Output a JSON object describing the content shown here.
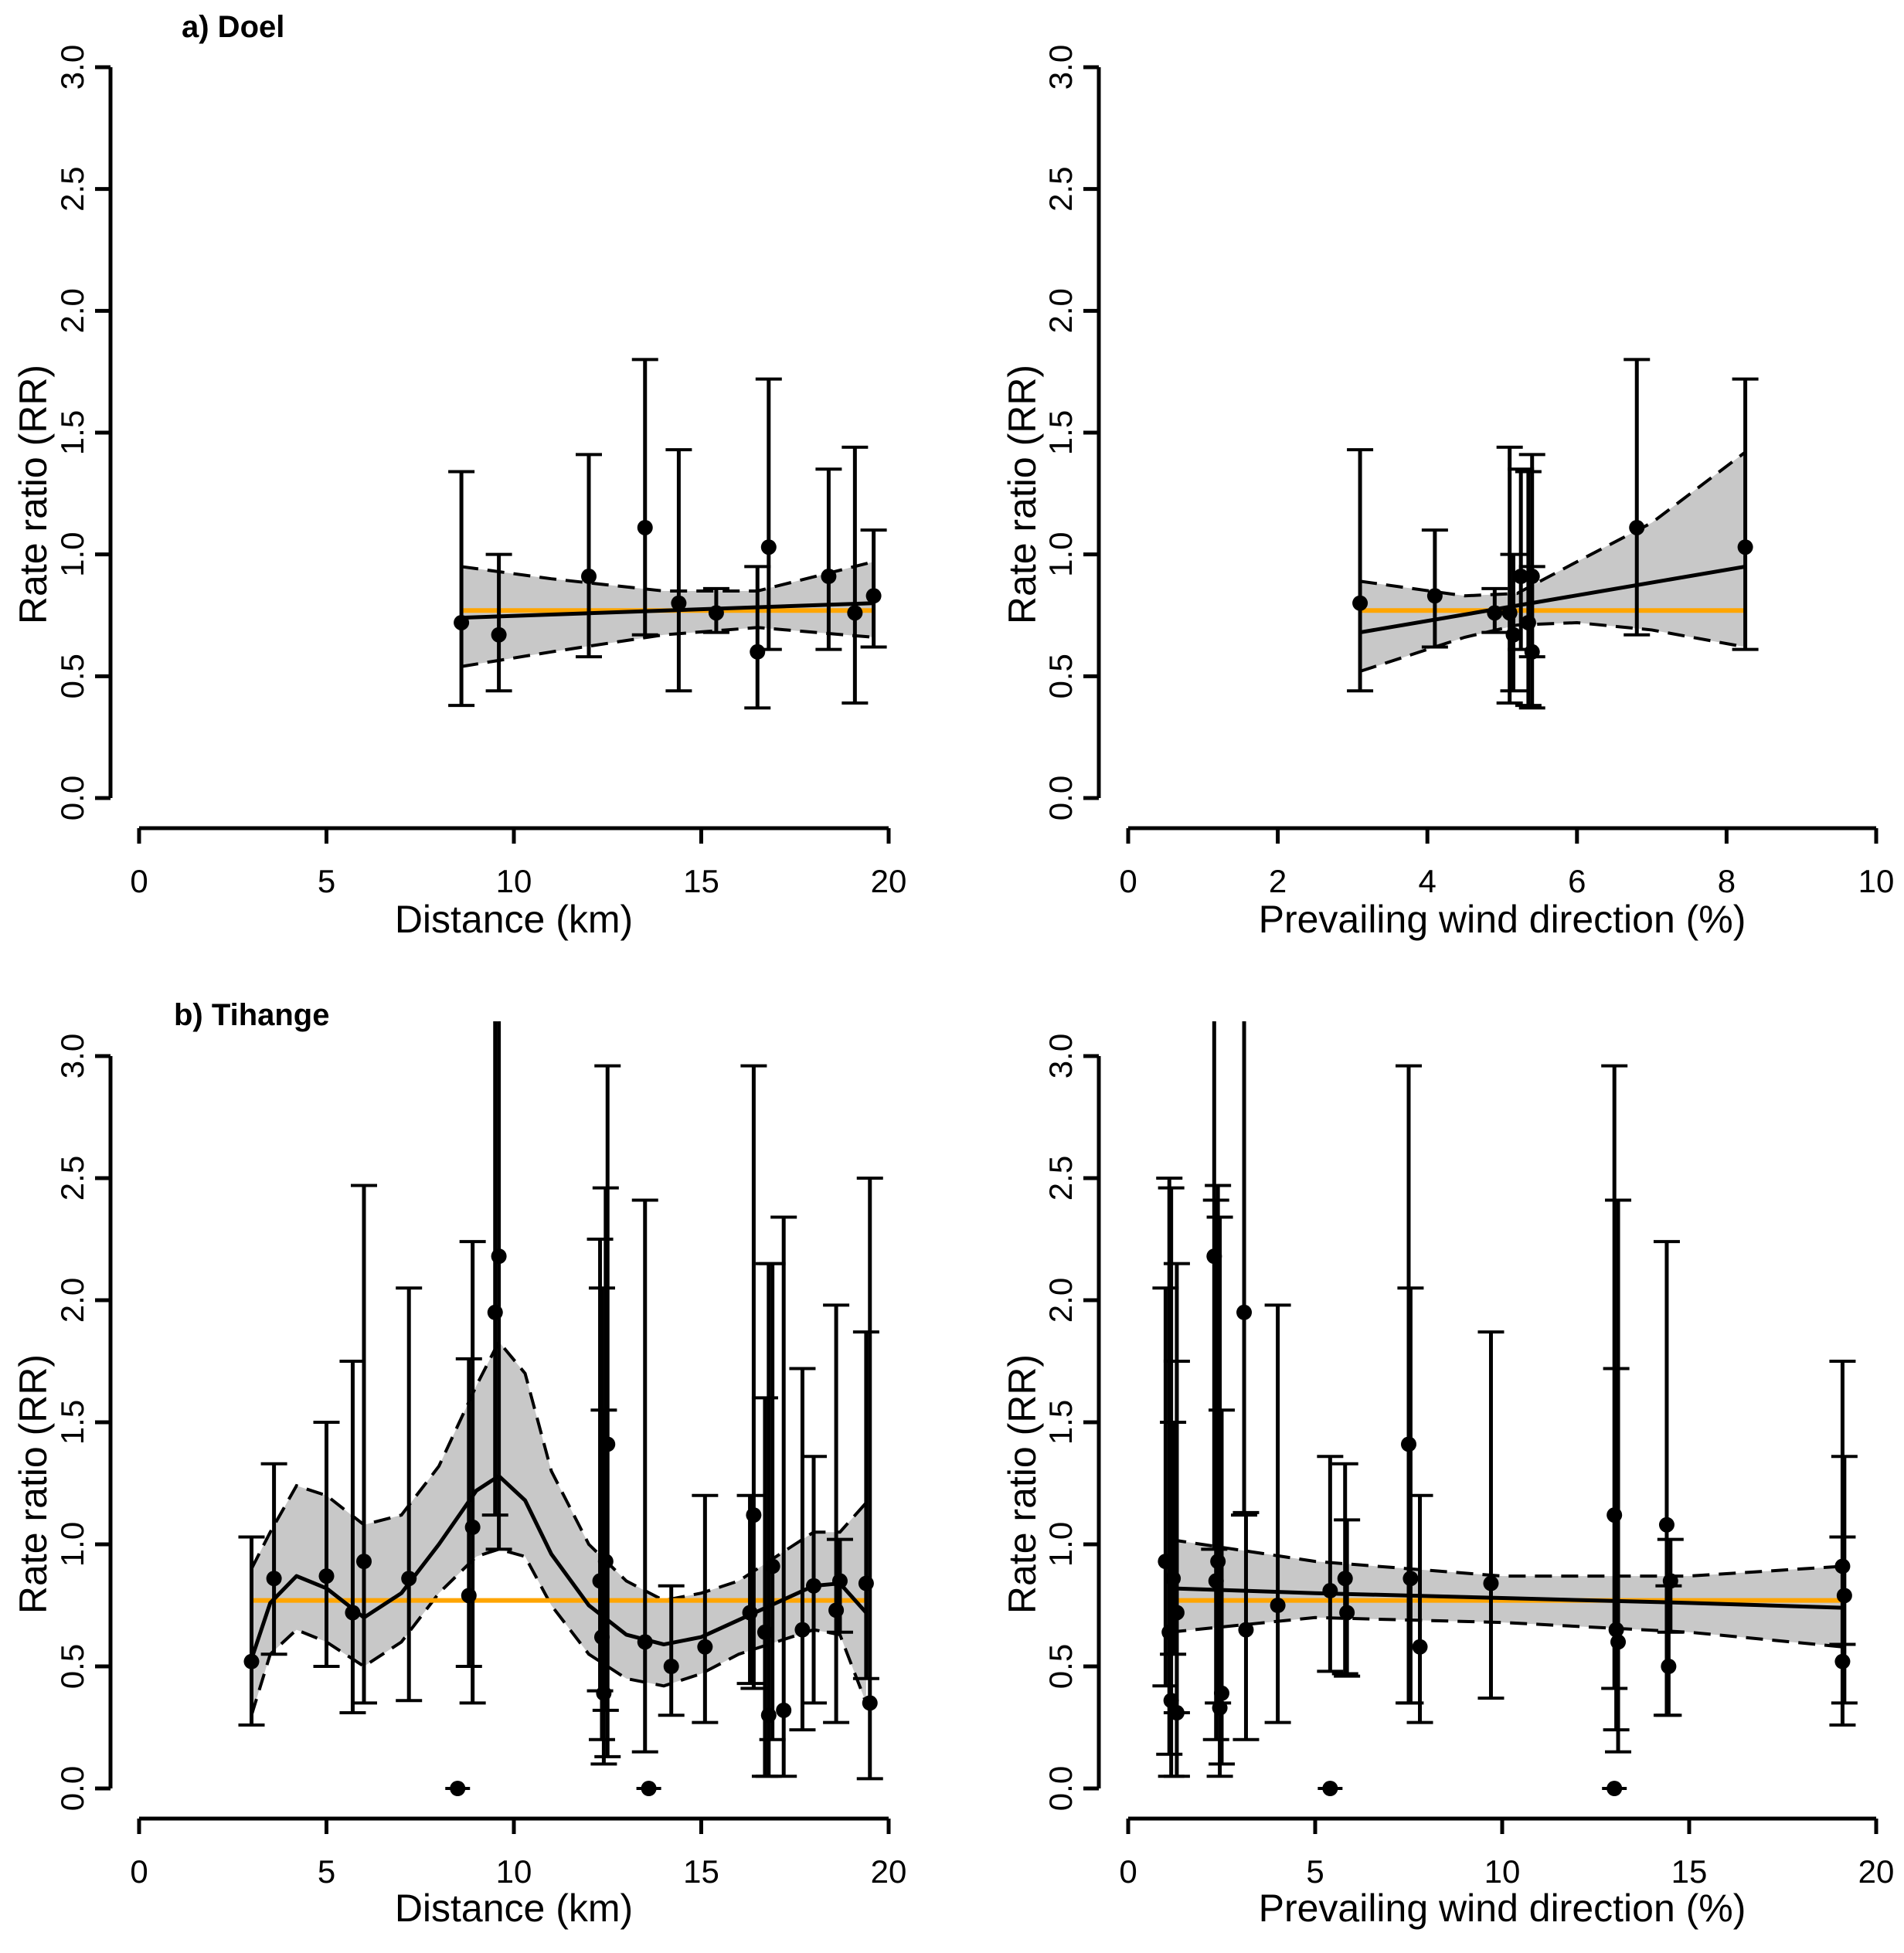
{
  "colors": {
    "reference_line": "#FFA500",
    "band_fill": "#c8c8c8",
    "ink": "#000000"
  },
  "chart_data": [
    {
      "id": "doel-distance",
      "type": "scatter",
      "panel_label": "a) Doel",
      "xlabel": "Distance (km)",
      "ylabel": "Rate ratio (RR)",
      "xlim": [
        0,
        20
      ],
      "ylim": [
        0,
        3
      ],
      "xticks": [
        "0",
        "5",
        "10",
        "15",
        "20"
      ],
      "yticks": [
        "0.0",
        "0.5",
        "1.0",
        "1.5",
        "2.0",
        "2.5",
        "3.0"
      ],
      "reference_rr": 0.77,
      "reference_x": [
        8.6,
        19.6
      ],
      "points": [
        {
          "x": 8.6,
          "rr": 0.72,
          "lo": 0.38,
          "hi": 1.34
        },
        {
          "x": 9.6,
          "rr": 0.67,
          "lo": 0.44,
          "hi": 1.0
        },
        {
          "x": 12.0,
          "rr": 0.91,
          "lo": 0.58,
          "hi": 1.41
        },
        {
          "x": 13.5,
          "rr": 1.11,
          "lo": 0.67,
          "hi": 1.8
        },
        {
          "x": 14.4,
          "rr": 0.8,
          "lo": 0.44,
          "hi": 1.43
        },
        {
          "x": 15.4,
          "rr": 0.76,
          "lo": 0.68,
          "hi": 0.86
        },
        {
          "x": 16.5,
          "rr": 0.6,
          "lo": 0.37,
          "hi": 0.95
        },
        {
          "x": 16.8,
          "rr": 1.03,
          "lo": 0.61,
          "hi": 1.72
        },
        {
          "x": 18.4,
          "rr": 0.91,
          "lo": 0.61,
          "hi": 1.35
        },
        {
          "x": 19.1,
          "rr": 0.76,
          "lo": 0.39,
          "hi": 1.44
        },
        {
          "x": 19.6,
          "rr": 0.83,
          "lo": 0.62,
          "hi": 1.1
        }
      ],
      "fit": [
        [
          8.6,
          0.74
        ],
        [
          19.6,
          0.8
        ]
      ],
      "band": [
        [
          8.6,
          0.54,
          0.95
        ],
        [
          11,
          0.6,
          0.9
        ],
        [
          14,
          0.67,
          0.85
        ],
        [
          16.5,
          0.7,
          0.85
        ],
        [
          19.6,
          0.66,
          0.97
        ]
      ]
    },
    {
      "id": "doel-wind",
      "type": "scatter",
      "xlabel": "Prevailing wind direction (%)",
      "ylabel": "Rate ratio (RR)",
      "xlim": [
        0,
        10
      ],
      "ylim": [
        0,
        3
      ],
      "xticks": [
        "0",
        "2",
        "4",
        "6",
        "8",
        "10"
      ],
      "yticks": [
        "0.0",
        "0.5",
        "1.0",
        "1.5",
        "2.0",
        "2.5",
        "3.0"
      ],
      "reference_rr": 0.77,
      "reference_x": [
        3.1,
        8.25
      ],
      "points": [
        {
          "x": 3.1,
          "rr": 0.8,
          "lo": 0.44,
          "hi": 1.43
        },
        {
          "x": 4.1,
          "rr": 0.83,
          "lo": 0.62,
          "hi": 1.1
        },
        {
          "x": 4.9,
          "rr": 0.76,
          "lo": 0.68,
          "hi": 0.86
        },
        {
          "x": 5.1,
          "rr": 0.76,
          "lo": 0.39,
          "hi": 1.44
        },
        {
          "x": 5.15,
          "rr": 0.67,
          "lo": 0.44,
          "hi": 1.0
        },
        {
          "x": 5.25,
          "rr": 0.91,
          "lo": 0.61,
          "hi": 1.35
        },
        {
          "x": 5.35,
          "rr": 0.72,
          "lo": 0.38,
          "hi": 1.34
        },
        {
          "x": 5.4,
          "rr": 0.91,
          "lo": 0.58,
          "hi": 1.41
        },
        {
          "x": 5.4,
          "rr": 0.6,
          "lo": 0.37,
          "hi": 0.95
        },
        {
          "x": 6.8,
          "rr": 1.11,
          "lo": 0.67,
          "hi": 1.8
        },
        {
          "x": 8.25,
          "rr": 1.03,
          "lo": 0.61,
          "hi": 1.72
        }
      ],
      "fit": [
        [
          3.1,
          0.68
        ],
        [
          8.25,
          0.95
        ]
      ],
      "band": [
        [
          3.1,
          0.52,
          0.89
        ],
        [
          4.5,
          0.66,
          0.83
        ],
        [
          5.2,
          0.71,
          0.84
        ],
        [
          6.0,
          0.72,
          0.97
        ],
        [
          7.0,
          0.69,
          1.13
        ],
        [
          8.25,
          0.62,
          1.42
        ]
      ]
    },
    {
      "id": "tihange-distance",
      "type": "scatter",
      "panel_label": "b) Tihange",
      "xlabel": "Distance (km)",
      "ylabel": "Rate ratio (RR)",
      "xlim": [
        0,
        20
      ],
      "ylim": [
        0,
        3
      ],
      "xticks": [
        "0",
        "5",
        "10",
        "15",
        "20"
      ],
      "yticks": [
        "0.0",
        "0.5",
        "1.0",
        "1.5",
        "2.0",
        "2.5",
        "3.0"
      ],
      "reference_rr": 0.77,
      "reference_x": [
        3.0,
        19.4
      ],
      "points": [
        {
          "x": 3.0,
          "rr": 0.52,
          "lo": 0.26,
          "hi": 1.03
        },
        {
          "x": 3.6,
          "rr": 0.86,
          "lo": 0.55,
          "hi": 1.33
        },
        {
          "x": 5.0,
          "rr": 0.87,
          "lo": 0.5,
          "hi": 1.5
        },
        {
          "x": 5.7,
          "rr": 0.72,
          "lo": 0.31,
          "hi": 1.75
        },
        {
          "x": 6.0,
          "rr": 0.93,
          "lo": 0.35,
          "hi": 2.47
        },
        {
          "x": 7.2,
          "rr": 0.86,
          "lo": 0.36,
          "hi": 2.05
        },
        {
          "x": 8.5,
          "rr": 0.0
        },
        {
          "x": 8.8,
          "rr": 0.79,
          "lo": 0.5,
          "hi": 1.76
        },
        {
          "x": 8.9,
          "rr": 1.07,
          "lo": 0.35,
          "hi": 2.24
        },
        {
          "x": 9.5,
          "rr": 1.95,
          "lo": 1.12,
          "hi": 3.4
        },
        {
          "x": 9.6,
          "rr": 2.18,
          "lo": 0.98,
          "hi": 3.4
        },
        {
          "x": 12.3,
          "rr": 0.85,
          "lo": 0.4,
          "hi": 2.25
        },
        {
          "x": 12.35,
          "rr": 0.62,
          "lo": 0.2,
          "hi": 2.05
        },
        {
          "x": 12.4,
          "rr": 0.39,
          "lo": 0.1,
          "hi": 1.55
        },
        {
          "x": 12.45,
          "rr": 0.93,
          "lo": 0.32,
          "hi": 2.46
        },
        {
          "x": 12.5,
          "rr": 1.41,
          "lo": 0.13,
          "hi": 2.96
        },
        {
          "x": 13.6,
          "rr": 0.0
        },
        {
          "x": 13.5,
          "rr": 0.6,
          "lo": 0.15,
          "hi": 2.41
        },
        {
          "x": 14.2,
          "rr": 0.5,
          "lo": 0.3,
          "hi": 0.83
        },
        {
          "x": 15.1,
          "rr": 0.58,
          "lo": 0.27,
          "hi": 1.2
        },
        {
          "x": 16.3,
          "rr": 0.72,
          "lo": 0.43,
          "hi": 1.2
        },
        {
          "x": 16.4,
          "rr": 1.12,
          "lo": 0.41,
          "hi": 2.96
        },
        {
          "x": 16.7,
          "rr": 0.64,
          "lo": 0.05,
          "hi": 1.6
        },
        {
          "x": 16.8,
          "rr": 0.3,
          "lo": 0.05,
          "hi": 2.15
        },
        {
          "x": 16.9,
          "rr": 0.91,
          "lo": 0.2,
          "hi": 2.15
        },
        {
          "x": 17.2,
          "rr": 0.32,
          "lo": 0.05,
          "hi": 2.34
        },
        {
          "x": 17.7,
          "rr": 0.65,
          "lo": 0.24,
          "hi": 1.72
        },
        {
          "x": 18.0,
          "rr": 0.83,
          "lo": 0.35,
          "hi": 1.36
        },
        {
          "x": 18.6,
          "rr": 0.73,
          "lo": 0.27,
          "hi": 1.98
        },
        {
          "x": 18.7,
          "rr": 0.85,
          "lo": 0.64,
          "hi": 1.02
        },
        {
          "x": 19.4,
          "rr": 0.84,
          "lo": 0.45,
          "hi": 1.87
        },
        {
          "x": 19.5,
          "rr": 0.35,
          "lo": 0.04,
          "hi": 2.5
        }
      ],
      "fit": [
        [
          3.0,
          0.53
        ],
        [
          3.5,
          0.76
        ],
        [
          4.2,
          0.87
        ],
        [
          5.0,
          0.82
        ],
        [
          6.0,
          0.7
        ],
        [
          7.0,
          0.8
        ],
        [
          8.0,
          1.0
        ],
        [
          9.0,
          1.22
        ],
        [
          9.6,
          1.28
        ],
        [
          10.3,
          1.18
        ],
        [
          11.0,
          0.96
        ],
        [
          12.0,
          0.75
        ],
        [
          13.0,
          0.63
        ],
        [
          14.0,
          0.59
        ],
        [
          15.0,
          0.62
        ],
        [
          16.0,
          0.69
        ],
        [
          17.0,
          0.76
        ],
        [
          18.0,
          0.83
        ],
        [
          18.7,
          0.84
        ],
        [
          19.4,
          0.72
        ]
      ],
      "band": [
        [
          3.0,
          0.3,
          0.9
        ],
        [
          3.5,
          0.55,
          1.05
        ],
        [
          4.2,
          0.65,
          1.24
        ],
        [
          5.0,
          0.6,
          1.2
        ],
        [
          6.0,
          0.5,
          1.08
        ],
        [
          7.0,
          0.6,
          1.12
        ],
        [
          8.0,
          0.8,
          1.32
        ],
        [
          9.0,
          0.95,
          1.65
        ],
        [
          9.6,
          0.98,
          1.83
        ],
        [
          10.3,
          0.95,
          1.7
        ],
        [
          11.0,
          0.75,
          1.3
        ],
        [
          12.0,
          0.55,
          1.0
        ],
        [
          13.0,
          0.45,
          0.85
        ],
        [
          14.0,
          0.42,
          0.77
        ],
        [
          15.0,
          0.47,
          0.8
        ],
        [
          16.0,
          0.55,
          0.85
        ],
        [
          17.0,
          0.6,
          0.95
        ],
        [
          18.0,
          0.65,
          1.05
        ],
        [
          18.7,
          0.63,
          1.05
        ],
        [
          19.4,
          0.35,
          1.17
        ]
      ]
    },
    {
      "id": "tihange-wind",
      "type": "scatter",
      "xlabel": "Prevailing wind direction (%)",
      "ylabel": "Rate ratio (RR)",
      "xlim": [
        0,
        20
      ],
      "ylim": [
        0,
        3
      ],
      "xticks": [
        "0",
        "5",
        "10",
        "15",
        "20"
      ],
      "yticks": [
        "0.0",
        "0.5",
        "1.0",
        "1.5",
        "2.0",
        "2.5",
        "3.0"
      ],
      "reference_rr": 0.77,
      "reference_x": [
        1.1,
        19.1
      ],
      "points": [
        {
          "x": 1.0,
          "rr": 0.93,
          "lo": 0.42,
          "hi": 2.05
        },
        {
          "x": 1.1,
          "rr": 0.64,
          "lo": 0.14,
          "hi": 2.5
        },
        {
          "x": 1.15,
          "rr": 0.36,
          "lo": 0.05,
          "hi": 2.46
        },
        {
          "x": 1.2,
          "rr": 0.86,
          "lo": 0.55,
          "hi": 1.5
        },
        {
          "x": 1.3,
          "rr": 0.31,
          "lo": 0.05,
          "hi": 2.15
        },
        {
          "x": 1.3,
          "rr": 0.72,
          "lo": 0.31,
          "hi": 1.75
        },
        {
          "x": 2.3,
          "rr": 2.18,
          "lo": 0.98,
          "hi": 3.4
        },
        {
          "x": 2.35,
          "rr": 0.85,
          "lo": 0.2,
          "hi": 2.41
        },
        {
          "x": 2.4,
          "rr": 0.93,
          "lo": 0.35,
          "hi": 2.47
        },
        {
          "x": 2.45,
          "rr": 0.33,
          "lo": 0.05,
          "hi": 2.34
        },
        {
          "x": 2.5,
          "rr": 0.39,
          "lo": 0.1,
          "hi": 1.55
        },
        {
          "x": 3.1,
          "rr": 1.95,
          "lo": 1.12,
          "hi": 3.4
        },
        {
          "x": 3.15,
          "rr": 0.65,
          "lo": 0.2,
          "hi": 1.13
        },
        {
          "x": 4.0,
          "rr": 0.75,
          "lo": 0.27,
          "hi": 1.98
        },
        {
          "x": 5.4,
          "rr": 0.0
        },
        {
          "x": 5.4,
          "rr": 0.81,
          "lo": 0.48,
          "hi": 1.36
        },
        {
          "x": 5.8,
          "rr": 0.86,
          "lo": 0.47,
          "hi": 1.33
        },
        {
          "x": 5.85,
          "rr": 0.72,
          "lo": 0.46,
          "hi": 1.1
        },
        {
          "x": 7.5,
          "rr": 1.41,
          "lo": 0.35,
          "hi": 2.96
        },
        {
          "x": 7.55,
          "rr": 0.86,
          "lo": 0.35,
          "hi": 2.05
        },
        {
          "x": 7.8,
          "rr": 0.58,
          "lo": 0.27,
          "hi": 1.2
        },
        {
          "x": 9.7,
          "rr": 0.84,
          "lo": 0.37,
          "hi": 1.87
        },
        {
          "x": 13.0,
          "rr": 1.12,
          "lo": 0.41,
          "hi": 2.96
        },
        {
          "x": 13.0,
          "rr": 0.0
        },
        {
          "x": 13.05,
          "rr": 0.65,
          "lo": 0.24,
          "hi": 1.72
        },
        {
          "x": 13.1,
          "rr": 0.6,
          "lo": 0.15,
          "hi": 2.41
        },
        {
          "x": 14.4,
          "rr": 1.08,
          "lo": 0.3,
          "hi": 2.24
        },
        {
          "x": 14.45,
          "rr": 0.5,
          "lo": 0.3,
          "hi": 0.83
        },
        {
          "x": 14.5,
          "rr": 0.85,
          "lo": 0.64,
          "hi": 1.02
        },
        {
          "x": 19.1,
          "rr": 0.91,
          "lo": 0.59,
          "hi": 1.75
        },
        {
          "x": 19.15,
          "rr": 0.79,
          "lo": 0.35,
          "hi": 1.36
        },
        {
          "x": 19.1,
          "rr": 0.52,
          "lo": 0.26,
          "hi": 1.03
        }
      ],
      "fit": [
        [
          1.1,
          0.82
        ],
        [
          5.0,
          0.8
        ],
        [
          10.0,
          0.78
        ],
        [
          15.0,
          0.76
        ],
        [
          19.1,
          0.74
        ]
      ],
      "band": [
        [
          1.1,
          0.64,
          1.02
        ],
        [
          5.0,
          0.7,
          0.93
        ],
        [
          10.0,
          0.68,
          0.87
        ],
        [
          15.0,
          0.64,
          0.87
        ],
        [
          19.1,
          0.58,
          0.91
        ]
      ]
    }
  ]
}
